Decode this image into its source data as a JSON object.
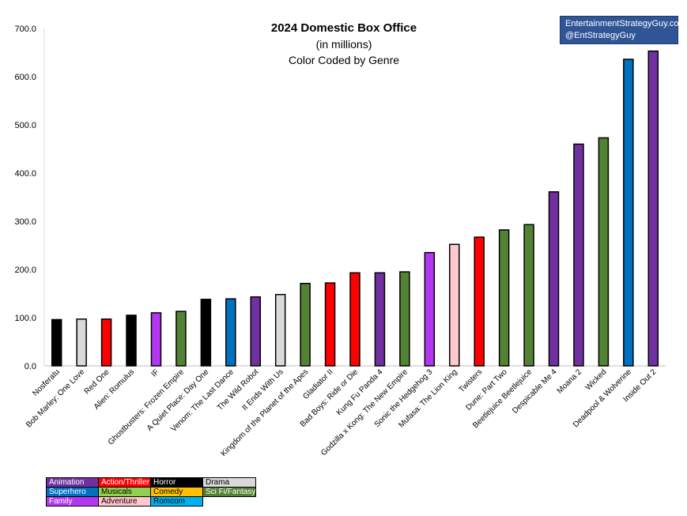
{
  "header": {
    "title": "2024 Domestic Box Office",
    "subtitle": "(in millions)",
    "note": "Color Coded by Genre"
  },
  "credit": {
    "site": "EntertainmentStrategyGuy.com",
    "handle": "@EntStrategyGuy"
  },
  "colors": {
    "Animation": "#7030a0",
    "Action/Thriller": "#ff0000",
    "Horror": "#000000",
    "Drama": "#d9d9d9",
    "Superhero": "#0070c0",
    "Musicals": "#92d050",
    "Comedy": "#ffc000",
    "Sci Fi/Fantasy": "#548235",
    "Family": "#b337f0",
    "Adventure": "#ffc7ce",
    "Romcom": "#00b0f0"
  },
  "legend": [
    [
      {
        "label": "Animation",
        "genre": "Animation",
        "text_color": "#ffffff"
      },
      {
        "label": "Action/Thriller",
        "genre": "Action/Thriller",
        "text_color": "#ffffff"
      },
      {
        "label": "Horror",
        "genre": "Horror",
        "text_color": "#ffffff"
      },
      {
        "label": "Drama",
        "genre": "Drama",
        "text_color": "#000000"
      }
    ],
    [
      {
        "label": "Superhero",
        "genre": "Superhero",
        "text_color": "#ffffff"
      },
      {
        "label": "Musicals",
        "genre": "Musicals",
        "text_color": "#000000"
      },
      {
        "label": "Comedy",
        "genre": "Comedy",
        "text_color": "#000000"
      },
      {
        "label": "Sci Fi/Fantasy",
        "genre": "Sci Fi/Fantasy",
        "text_color": "#ffffff"
      }
    ],
    [
      {
        "label": "Family",
        "genre": "Family",
        "text_color": "#ffffff"
      },
      {
        "label": "Adventure",
        "genre": "Adventure",
        "text_color": "#000000"
      },
      {
        "label": "Romcom",
        "genre": "Romcom",
        "text_color": "#000000"
      }
    ]
  ],
  "chart_data": {
    "type": "bar",
    "title": "2024 Domestic Box Office",
    "ylim": [
      0,
      700
    ],
    "yticks": [
      "0.0",
      "100.0",
      "200.0",
      "300.0",
      "400.0",
      "500.0",
      "600.0",
      "700.0"
    ],
    "grid": false,
    "categories": [
      "Nosferatu",
      "Bob Marley: One Love",
      "Red One",
      "Alien: Romulus",
      "IF",
      "Ghostbusters: Frozen Empire",
      "A Quiet Place: Day One",
      "Venom: The Last Dance",
      "The Wild Robot",
      "It Ends With Us",
      "Kingdom of the Planet of the Apes",
      "Gladiator II",
      "Bad Boys: Ride or Die",
      "Kung Fu Panda 4",
      "Godzilla x Kong: The New Empire",
      "Sonic the Hedgehog 3",
      "Mufasa: The Lion King",
      "Twisters",
      "Dune: Part Two",
      "Beetlejuice Beetlejuice",
      "Despicable Me 4",
      "Moana 2",
      "Wicked",
      "Deadpool & Wolverine",
      "Inside Out 2"
    ],
    "values": [
      96,
      97,
      97,
      105,
      110,
      113,
      138,
      139,
      143,
      148,
      171,
      172,
      193,
      193,
      195,
      235,
      252,
      267,
      282,
      293,
      361,
      460,
      473,
      636,
      653
    ],
    "genres": [
      "Horror",
      "Drama",
      "Action/Thriller",
      "Horror",
      "Family",
      "Sci Fi/Fantasy",
      "Horror",
      "Superhero",
      "Animation",
      "Drama",
      "Sci Fi/Fantasy",
      "Action/Thriller",
      "Action/Thriller",
      "Animation",
      "Sci Fi/Fantasy",
      "Family",
      "Adventure",
      "Action/Thriller",
      "Sci Fi/Fantasy",
      "Sci Fi/Fantasy",
      "Animation",
      "Animation",
      "Sci Fi/Fantasy",
      "Superhero",
      "Animation"
    ]
  }
}
